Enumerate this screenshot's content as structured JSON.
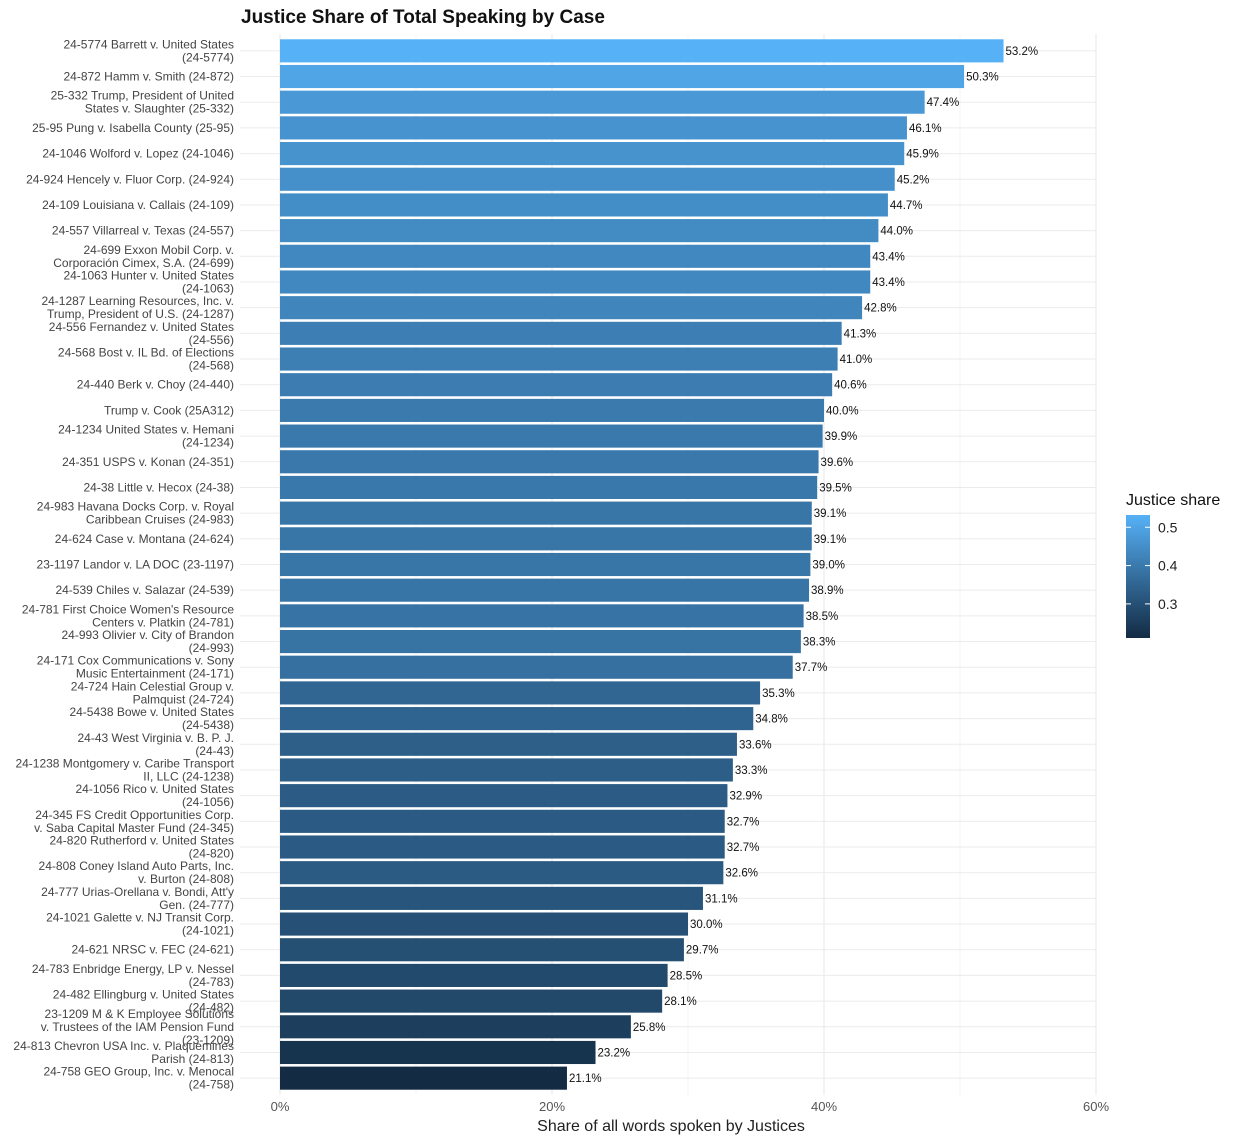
{
  "chart_data": {
    "type": "bar",
    "orientation": "horizontal",
    "title": "Justice Share of Total Speaking by Case",
    "xlabel": "Share of all words spoken by Justices",
    "ylabel": "",
    "xlim": [
      0,
      0.6
    ],
    "x_ticks": [
      0,
      0.2,
      0.4,
      0.6
    ],
    "x_tick_labels": [
      "0%",
      "20%",
      "40%",
      "60%"
    ],
    "grid": true,
    "legend": {
      "title": "Justice share",
      "position": "right",
      "range": [
        0.211,
        0.532
      ],
      "ticks": [
        0.5,
        0.4,
        0.3
      ],
      "tick_labels": [
        "0.5",
        "0.4",
        "0.3"
      ],
      "color_low": "#132B43",
      "color_high": "#56B1F7"
    },
    "categories": [
      [
        "24-5774 Barrett v. United States",
        "(24-5774)"
      ],
      [
        "24-872 Hamm v. Smith (24-872)"
      ],
      [
        "25-332 Trump, President of United",
        "States v. Slaughter (25-332)"
      ],
      [
        "25-95 Pung v. Isabella County (25-95)"
      ],
      [
        "24-1046 Wolford v. Lopez (24-1046)"
      ],
      [
        "24-924 Hencely v. Fluor Corp. (24-924)"
      ],
      [
        "24-109 Louisiana v. Callais (24-109)"
      ],
      [
        "24-557 Villarreal v. Texas (24-557)"
      ],
      [
        "24-699 Exxon Mobil Corp. v.",
        "Corporación Cimex, S.A. (24-699)"
      ],
      [
        "24-1063 Hunter v. United States",
        "(24-1063)"
      ],
      [
        "24-1287 Learning Resources, Inc. v.",
        "Trump, President of U.S. (24-1287)"
      ],
      [
        "24-556 Fernandez v. United States",
        "(24-556)"
      ],
      [
        "24-568 Bost v. IL Bd. of Elections",
        "(24-568)"
      ],
      [
        "24-440 Berk v. Choy (24-440)"
      ],
      [
        "Trump v. Cook (25A312)"
      ],
      [
        "24-1234 United States v. Hemani",
        "(24-1234)"
      ],
      [
        "24-351 USPS v. Konan (24-351)"
      ],
      [
        "24-38 Little v. Hecox (24-38)"
      ],
      [
        "24-983 Havana Docks Corp. v. Royal",
        "Caribbean Cruises (24-983)"
      ],
      [
        "24-624 Case v. Montana (24-624)"
      ],
      [
        "23-1197 Landor v. LA DOC (23-1197)"
      ],
      [
        "24-539 Chiles v. Salazar (24-539)"
      ],
      [
        "24-781 First Choice Women's Resource",
        "Centers v. Platkin (24-781)"
      ],
      [
        "24-993 Olivier v. City of Brandon",
        "(24-993)"
      ],
      [
        "24-171 Cox Communications v. Sony",
        "Music Entertainment (24-171)"
      ],
      [
        "24-724 Hain Celestial Group v.",
        "Palmquist (24-724)"
      ],
      [
        "24-5438 Bowe v. United States",
        "(24-5438)"
      ],
      [
        "24-43 West Virginia v. B. P. J.",
        "(24-43)"
      ],
      [
        "24-1238 Montgomery v. Caribe Transport",
        "II, LLC (24-1238)"
      ],
      [
        "24-1056 Rico v. United States",
        "(24-1056)"
      ],
      [
        "24-345 FS Credit Opportunities Corp.",
        "v. Saba Capital Master Fund (24-345)"
      ],
      [
        "24-820 Rutherford v. United States",
        "(24-820)"
      ],
      [
        "24-808 Coney Island Auto Parts, Inc.",
        "v. Burton (24-808)"
      ],
      [
        "24-777 Urias-Orellana v. Bondi, Att'y",
        "Gen. (24-777)"
      ],
      [
        "24-1021 Galette v. NJ Transit Corp.",
        "(24-1021)"
      ],
      [
        "24-621 NRSC v. FEC (24-621)"
      ],
      [
        "24-783 Enbridge Energy, LP v. Nessel",
        "(24-783)"
      ],
      [
        "24-482 Ellingburg v. United States",
        "(24-482)"
      ],
      [
        "23-1209 M & K Employee Solutions",
        "v. Trustees of the IAM Pension Fund",
        "(23-1209)"
      ],
      [
        "24-813 Chevron USA Inc. v. Plaquemines",
        "Parish (24-813)"
      ],
      [
        "24-758 GEO Group, Inc. v. Menocal",
        "(24-758)"
      ]
    ],
    "values": [
      0.532,
      0.503,
      0.474,
      0.461,
      0.459,
      0.452,
      0.447,
      0.44,
      0.434,
      0.434,
      0.428,
      0.413,
      0.41,
      0.406,
      0.4,
      0.399,
      0.396,
      0.395,
      0.391,
      0.391,
      0.39,
      0.389,
      0.385,
      0.383,
      0.377,
      0.353,
      0.348,
      0.336,
      0.333,
      0.329,
      0.327,
      0.327,
      0.326,
      0.311,
      0.3,
      0.297,
      0.285,
      0.281,
      0.258,
      0.232,
      0.211
    ],
    "data_labels": [
      "53.2%",
      "50.3%",
      "47.4%",
      "46.1%",
      "45.9%",
      "45.2%",
      "44.7%",
      "44.0%",
      "43.4%",
      "43.4%",
      "42.8%",
      "41.3%",
      "41.0%",
      "40.6%",
      "40.0%",
      "39.9%",
      "39.6%",
      "39.5%",
      "39.1%",
      "39.1%",
      "39.0%",
      "38.9%",
      "38.5%",
      "38.3%",
      "37.7%",
      "35.3%",
      "34.8%",
      "33.6%",
      "33.3%",
      "32.9%",
      "32.7%",
      "32.7%",
      "32.6%",
      "31.1%",
      "30.0%",
      "29.7%",
      "28.5%",
      "28.1%",
      "25.8%",
      "23.2%",
      "21.1%"
    ]
  }
}
